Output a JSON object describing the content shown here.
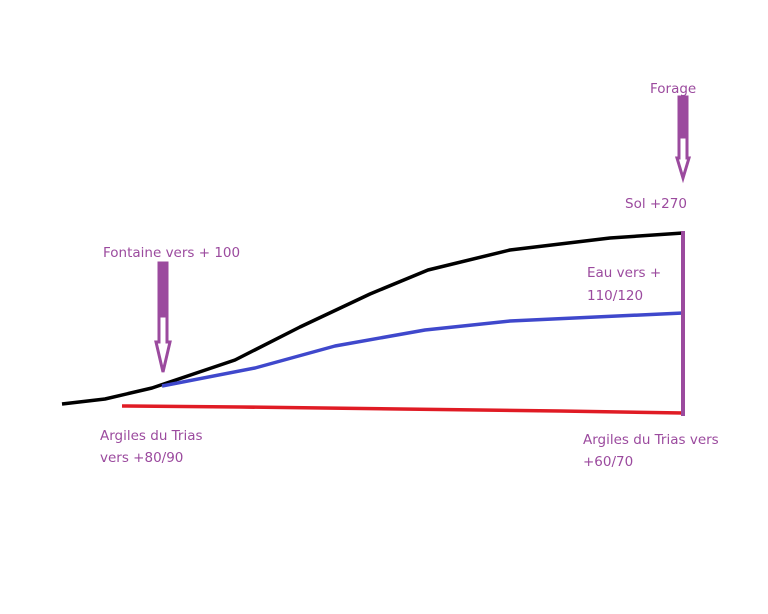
{
  "labels": {
    "forage": "Forage",
    "sol": "Sol +270",
    "fontaine": "Fontaine vers + 100",
    "eau": [
      "Eau vers +",
      "110/120"
    ],
    "argiles_left": [
      "Argiles du Trias",
      "vers +80/90"
    ],
    "argiles_right": [
      "Argiles du Trias vers",
      "+60/70"
    ]
  }
}
